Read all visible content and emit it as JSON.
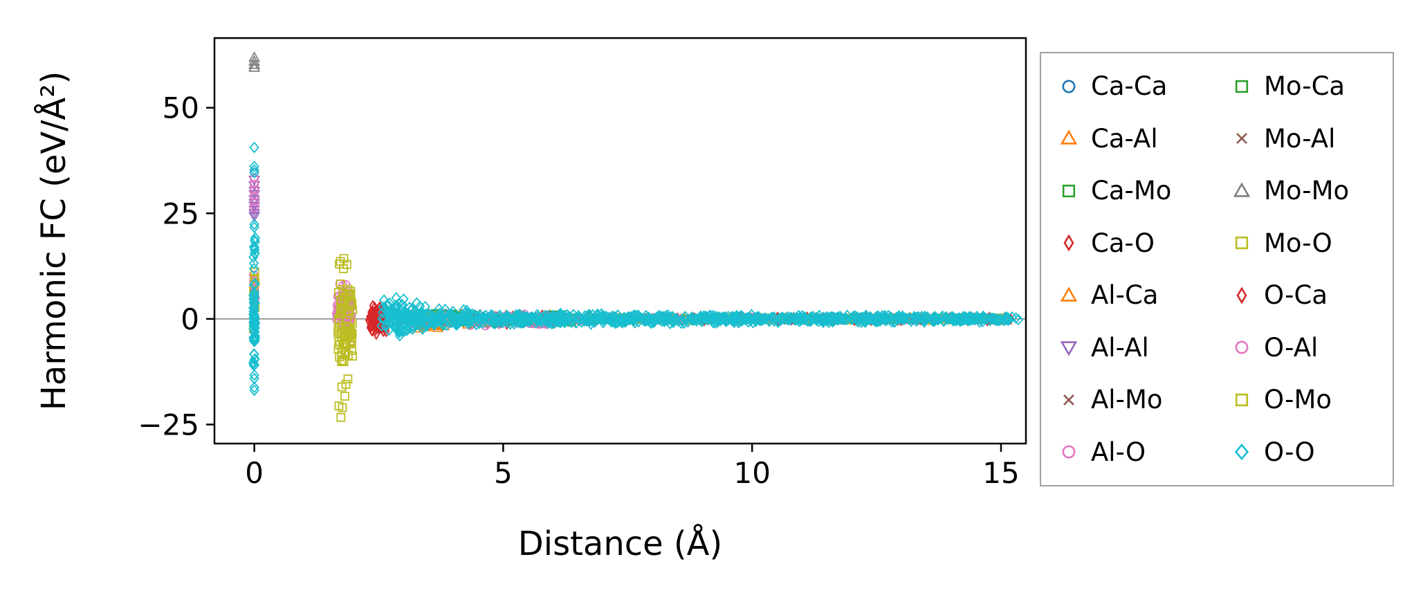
{
  "chart_data": {
    "type": "scatter",
    "title": "",
    "xlabel": "Distance (Å)",
    "ylabel": "Harmonic FC (eV/Å²)",
    "xlim": [
      -0.8,
      15.5
    ],
    "ylim": [
      -29.5,
      66.5
    ],
    "xticks": [
      0,
      5,
      10,
      15
    ],
    "yticks": [
      -25,
      0,
      25,
      50
    ],
    "xtick_labels": [
      "0",
      "5",
      "10",
      "15"
    ],
    "ytick_labels": [
      "−25",
      "0",
      "25",
      "50"
    ],
    "grid": false,
    "zero_line": {
      "y": 0,
      "color": "#808080"
    },
    "axis_color": "#000000",
    "legend": {
      "position": "outside-right",
      "columns": 2,
      "border_color": "#a0a0a0",
      "background": "#ffffff"
    },
    "series": [
      {
        "name": "Ca-Ca",
        "color": "#1f77b4",
        "marker": "o",
        "points": [
          [
            0,
            7.6
          ],
          [
            0,
            7.1
          ],
          [
            0,
            6.4
          ],
          [
            3.85,
            1.2
          ],
          [
            3.9,
            -0.9
          ],
          [
            4.05,
            0.8
          ]
        ],
        "bands": [
          {
            "x": [
              3.8,
              15.2
            ],
            "y": [
              -0.35,
              0.35
            ],
            "n": 70,
            "seed": 11
          }
        ]
      },
      {
        "name": "Ca-Al",
        "color": "#ff7f0e",
        "marker": "^",
        "points": [
          [
            3.3,
            -2.2
          ],
          [
            3.45,
            -1.9
          ],
          [
            3.6,
            -1.6
          ]
        ],
        "bands": [
          {
            "x": [
              3.2,
              3.9
            ],
            "y": [
              -1.8,
              1.2
            ],
            "n": 25,
            "seed": 21
          },
          {
            "x": [
              3.9,
              6.0
            ],
            "y": [
              -1.6,
              1.4
            ],
            "n": 30,
            "seed": 22
          },
          {
            "x": [
              6.0,
              15.2
            ],
            "y": [
              -0.3,
              0.3
            ],
            "n": 50,
            "seed": 23
          }
        ]
      },
      {
        "name": "Ca-Mo",
        "color": "#2ca02c",
        "marker": "s",
        "points": [
          [
            3.95,
            0.9
          ],
          [
            4.1,
            0.7
          ],
          [
            4.0,
            1.1
          ]
        ],
        "bands": [
          {
            "x": [
              3.4,
              4.3
            ],
            "y": [
              -1.2,
              1.5
            ],
            "n": 25,
            "seed": 31
          },
          {
            "x": [
              4.3,
              6.5
            ],
            "y": [
              -1.3,
              1.3
            ],
            "n": 25,
            "seed": 32
          },
          {
            "x": [
              6.5,
              15.2
            ],
            "y": [
              -0.28,
              0.28
            ],
            "n": 45,
            "seed": 33
          }
        ]
      },
      {
        "name": "Ca-O",
        "color": "#d62728",
        "marker": "d",
        "points": [
          [
            2.38,
            3.1
          ],
          [
            2.45,
            -3.6
          ],
          [
            2.52,
            2.8
          ]
        ],
        "bands": [
          {
            "x": [
              2.3,
              2.65
            ],
            "y": [
              -3.6,
              3.0
            ],
            "n": 65,
            "seed": 41
          },
          {
            "x": [
              4.2,
              7.0
            ],
            "y": [
              -1.5,
              1.5
            ],
            "n": 35,
            "seed": 42
          },
          {
            "x": [
              7.0,
              15.2
            ],
            "y": [
              -0.4,
              0.4
            ],
            "n": 60,
            "seed": 43
          }
        ]
      },
      {
        "name": "Al-Ca",
        "color": "#ff7f0e",
        "marker": "^",
        "points": [],
        "bands": [
          {
            "x": [
              3.2,
              3.9
            ],
            "y": [
              -2.4,
              1.0
            ],
            "n": 22,
            "seed": 51
          },
          {
            "x": [
              3.9,
              15.2
            ],
            "y": [
              -0.35,
              0.35
            ],
            "n": 55,
            "seed": 52
          }
        ]
      },
      {
        "name": "Al-Al",
        "color": "#9467bd",
        "marker": "v",
        "points": [
          [
            0,
            32.9
          ],
          [
            0,
            31.6
          ],
          [
            0,
            30.3
          ],
          [
            0,
            29.5
          ],
          [
            0,
            28.2
          ],
          [
            0,
            27.4
          ],
          [
            0,
            26.7
          ],
          [
            0,
            25.8
          ],
          [
            0,
            25.0
          ],
          [
            0,
            24.3
          ]
        ],
        "bands": [
          {
            "x": [
              2.8,
              3.4
            ],
            "y": [
              -1.0,
              1.0
            ],
            "n": 15,
            "seed": 61
          },
          {
            "x": [
              3.4,
              15.2
            ],
            "y": [
              -0.3,
              0.3
            ],
            "n": 40,
            "seed": 62
          }
        ]
      },
      {
        "name": "Al-Mo",
        "color": "#8c564b",
        "marker": "x",
        "points": [],
        "bands": [
          {
            "x": [
              3.2,
              3.9
            ],
            "y": [
              -0.9,
              0.9
            ],
            "n": 18,
            "seed": 71
          },
          {
            "x": [
              3.9,
              15.2
            ],
            "y": [
              -0.3,
              0.3
            ],
            "n": 40,
            "seed": 72
          }
        ]
      },
      {
        "name": "Al-O",
        "color": "#e377c2",
        "marker": "o",
        "points": [
          [
            0,
            34.7
          ],
          [
            0,
            33.3
          ],
          [
            0,
            31.9
          ],
          [
            0,
            30.6
          ],
          [
            0,
            29.1
          ],
          [
            0,
            27.7
          ],
          [
            0,
            26.4
          ],
          [
            1.72,
            8.3
          ],
          [
            1.78,
            7.9
          ],
          [
            1.84,
            8.1
          ]
        ],
        "bands": [
          {
            "x": [
              -0.02,
              0.02
            ],
            "y": [
              -4.0,
              15.0
            ],
            "n": 12,
            "seed": 81
          },
          {
            "x": [
              1.65,
              1.95
            ],
            "y": [
              -2.4,
              7.5
            ],
            "n": 45,
            "seed": 82
          },
          {
            "x": [
              3.1,
              3.7
            ],
            "y": [
              -1.7,
              1.2
            ],
            "n": 20,
            "seed": 83
          },
          {
            "x": [
              3.7,
              6.0
            ],
            "y": [
              -1.7,
              1.5
            ],
            "n": 30,
            "seed": 84
          },
          {
            "x": [
              6.0,
              15.2
            ],
            "y": [
              -0.4,
              0.4
            ],
            "n": 55,
            "seed": 85
          }
        ]
      },
      {
        "name": "Mo-Ca",
        "color": "#2ca02c",
        "marker": "s",
        "points": [],
        "bands": [
          {
            "x": [
              3.4,
              4.3
            ],
            "y": [
              -1.1,
              1.4
            ],
            "n": 20,
            "seed": 91
          },
          {
            "x": [
              4.3,
              15.2
            ],
            "y": [
              -0.3,
              0.3
            ],
            "n": 45,
            "seed": 92
          }
        ]
      },
      {
        "name": "Mo-Al",
        "color": "#8c564b",
        "marker": "x",
        "points": [],
        "bands": [
          {
            "x": [
              3.2,
              3.9
            ],
            "y": [
              -0.8,
              0.8
            ],
            "n": 15,
            "seed": 101
          },
          {
            "x": [
              3.9,
              15.2
            ],
            "y": [
              -0.28,
              0.28
            ],
            "n": 35,
            "seed": 102
          }
        ]
      },
      {
        "name": "Mo-Mo",
        "color": "#7f7f7f",
        "marker": "^",
        "points": [
          [
            0,
            61.9
          ],
          [
            0,
            61.0
          ],
          [
            0,
            60.2
          ],
          [
            0,
            59.5
          ]
        ],
        "bands": [
          {
            "x": [
              3.7,
              4.1
            ],
            "y": [
              -0.8,
              0.8
            ],
            "n": 10,
            "seed": 111
          },
          {
            "x": [
              4.1,
              15.2
            ],
            "y": [
              -0.25,
              0.25
            ],
            "n": 30,
            "seed": 112
          }
        ]
      },
      {
        "name": "Mo-O",
        "color": "#bcbd22",
        "marker": "s",
        "points": [
          [
            1.74,
            -23.3
          ],
          [
            1.7,
            -20.6
          ],
          [
            1.82,
            -18.3
          ],
          [
            1.76,
            -16.1
          ],
          [
            1.88,
            -14.2
          ],
          [
            1.8,
            14.3
          ],
          [
            1.73,
            13.6
          ],
          [
            1.86,
            12.9
          ],
          [
            1.79,
            11.9
          ]
        ],
        "bands": [
          {
            "x": [
              1.68,
              1.98
            ],
            "y": [
              -13.0,
              11.0
            ],
            "n": 55,
            "seed": 121
          },
          {
            "x": [
              -0.02,
              0.02
            ],
            "y": [
              -8.0,
              14.0
            ],
            "n": 10,
            "seed": 122
          },
          {
            "x": [
              3.4,
              4.0
            ],
            "y": [
              -1.4,
              1.4
            ],
            "n": 18,
            "seed": 123
          },
          {
            "x": [
              4.0,
              15.2
            ],
            "y": [
              -0.35,
              0.35
            ],
            "n": 45,
            "seed": 124
          }
        ]
      },
      {
        "name": "O-Ca",
        "color": "#d62728",
        "marker": "d",
        "points": [],
        "bands": [
          {
            "x": [
              2.3,
              2.65
            ],
            "y": [
              -3.4,
              3.0
            ],
            "n": 50,
            "seed": 131
          },
          {
            "x": [
              4.2,
              15.2
            ],
            "y": [
              -0.45,
              0.45
            ],
            "n": 60,
            "seed": 132
          }
        ]
      },
      {
        "name": "O-Al",
        "color": "#e377c2",
        "marker": "o",
        "points": [],
        "bands": [
          {
            "x": [
              1.65,
              1.95
            ],
            "y": [
              -2.2,
              7.0
            ],
            "n": 35,
            "seed": 141
          },
          {
            "x": [
              3.1,
              6.0
            ],
            "y": [
              -1.5,
              1.2
            ],
            "n": 30,
            "seed": 142
          },
          {
            "x": [
              6.0,
              15.2
            ],
            "y": [
              -0.4,
              0.4
            ],
            "n": 50,
            "seed": 143
          }
        ]
      },
      {
        "name": "O-Mo",
        "color": "#bcbd22",
        "marker": "s",
        "points": [
          [
            1.77,
            -21.0
          ],
          [
            1.84,
            -15.5
          ],
          [
            1.71,
            13.0
          ]
        ],
        "bands": [
          {
            "x": [
              1.68,
              1.98
            ],
            "y": [
              -12.0,
              10.0
            ],
            "n": 45,
            "seed": 151
          },
          {
            "x": [
              3.4,
              15.2
            ],
            "y": [
              -0.35,
              0.35
            ],
            "n": 45,
            "seed": 152
          }
        ]
      },
      {
        "name": "O-O",
        "color": "#17becf",
        "marker": "D",
        "points": [
          [
            0,
            40.6
          ],
          [
            0,
            36.1
          ],
          [
            0,
            35.3
          ],
          [
            0,
            34.6
          ],
          [
            0,
            22.4
          ],
          [
            0,
            21.7
          ],
          [
            0,
            -13.3
          ],
          [
            0,
            -14.1
          ],
          [
            0,
            -16.2
          ],
          [
            0,
            -16.9
          ],
          [
            2.85,
            5.0
          ],
          [
            3.0,
            4.7
          ],
          [
            2.92,
            -4.0
          ],
          [
            15.22,
            0.45
          ],
          [
            15.3,
            0.2
          ],
          [
            15.35,
            -0.15
          ]
        ],
        "bands": [
          {
            "x": [
              -0.02,
              0.02
            ],
            "y": [
              -9.0,
              9.0
            ],
            "n": 55,
            "seed": 161
          },
          {
            "x": [
              -0.02,
              0.02
            ],
            "y": [
              9.0,
              21.0
            ],
            "n": 12,
            "seed": 162
          },
          {
            "x": [
              -0.02,
              0.02
            ],
            "y": [
              -12.0,
              -9.0
            ],
            "n": 6,
            "seed": 163
          },
          {
            "x": [
              2.55,
              3.45
            ],
            "y": [
              -3.8,
              4.6
            ],
            "n": 130,
            "seed": 164
          },
          {
            "x": [
              3.45,
              4.5
            ],
            "y": [
              -2.2,
              2.4
            ],
            "n": 90,
            "seed": 165
          },
          {
            "x": [
              4.5,
              7.0
            ],
            "y": [
              -1.4,
              1.4
            ],
            "n": 210,
            "seed": 166
          },
          {
            "x": [
              7.0,
              10.0
            ],
            "y": [
              -1.15,
              1.15
            ],
            "n": 210,
            "seed": 167
          },
          {
            "x": [
              10.0,
              13.0
            ],
            "y": [
              -0.95,
              0.95
            ],
            "n": 190,
            "seed": 168
          },
          {
            "x": [
              13.0,
              14.75
            ],
            "y": [
              -0.8,
              0.8
            ],
            "n": 110,
            "seed": 169
          },
          {
            "x": [
              14.75,
              15.15
            ],
            "y": [
              -0.6,
              0.6
            ],
            "n": 25,
            "seed": 170
          }
        ]
      }
    ]
  }
}
